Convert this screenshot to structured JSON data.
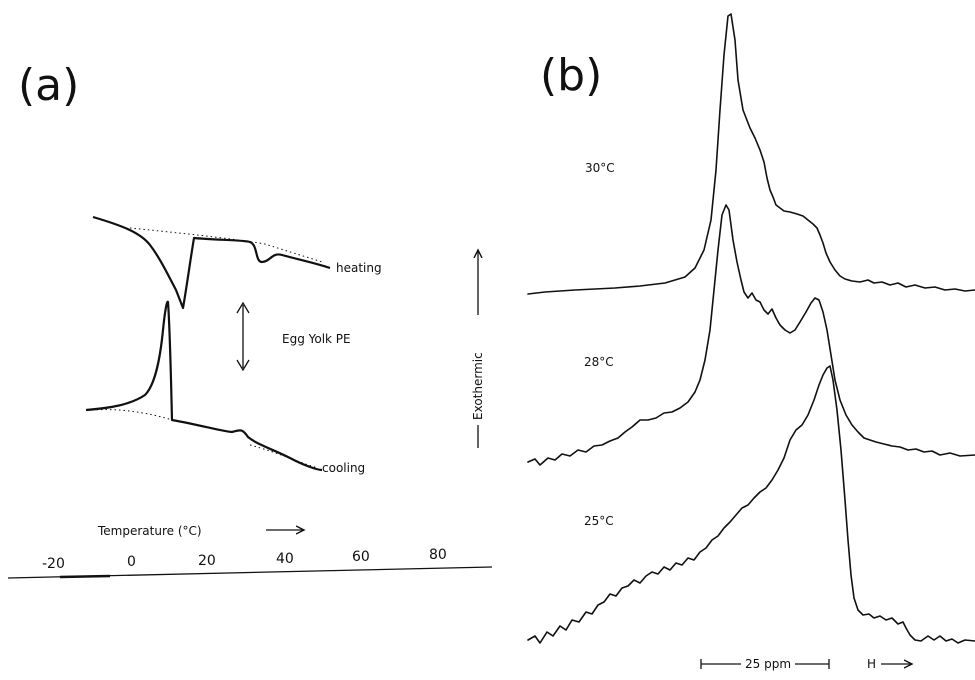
{
  "panel_a": {
    "label": "(a)",
    "heating_label": "heating",
    "cooling_label": "cooling",
    "sample_label": "Egg Yolk PE",
    "exothermic_label": "Exothermic",
    "temperature_label": "Temperature (°C)",
    "ticks": [
      "-20",
      "0",
      "20",
      "40",
      "60",
      "80"
    ]
  },
  "panel_b": {
    "label": "(b)",
    "spectra": [
      {
        "temperature": "30°C"
      },
      {
        "temperature": "28°C"
      },
      {
        "temperature": "25°C"
      }
    ],
    "scale_label": "25 ppm",
    "field_label": "H"
  },
  "colors": {
    "ink": "#111111",
    "background": "#ffffff"
  }
}
